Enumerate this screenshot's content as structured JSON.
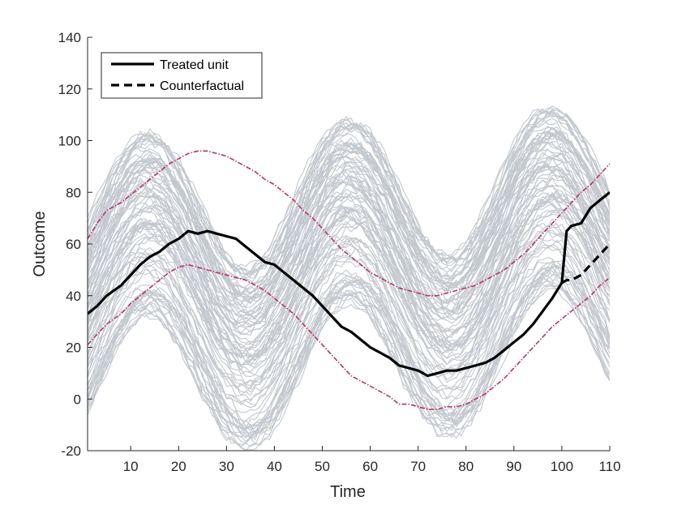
{
  "chart_data": {
    "type": "line",
    "xlabel": "Time",
    "ylabel": "Outcome",
    "xlim": [
      1,
      110
    ],
    "ylim": [
      -20,
      140
    ],
    "xticks": [
      10,
      20,
      30,
      40,
      50,
      60,
      70,
      80,
      90,
      100,
      110
    ],
    "yticks": [
      -20,
      0,
      20,
      40,
      60,
      80,
      100,
      120,
      140
    ],
    "grid": false,
    "legend_placement": "top-left",
    "colors": {
      "donor": "#c3c8cf",
      "treated": "#000000",
      "counterfactual": "#000000",
      "highlight": "#b8336a",
      "axis": "#262626"
    },
    "donor_pool": {
      "count": 100,
      "offset_range": [
        -30,
        42
      ],
      "description_note": ""
    },
    "series": [
      {
        "name": "Treated unit",
        "style": "solid",
        "x": [
          1,
          3,
          5,
          8,
          10,
          12,
          14,
          16,
          18,
          20,
          22,
          24,
          26,
          28,
          30,
          32,
          34,
          36,
          38,
          40,
          42,
          44,
          46,
          48,
          50,
          52,
          54,
          56,
          58,
          60,
          62,
          64,
          66,
          68,
          70,
          72,
          74,
          76,
          78,
          80,
          82,
          84,
          86,
          88,
          90,
          92,
          94,
          96,
          98,
          100,
          101,
          102,
          104,
          106,
          108,
          110
        ],
        "y": [
          33,
          36,
          40,
          44,
          48,
          52,
          55,
          57,
          60,
          62,
          65,
          64,
          65,
          64,
          63,
          62,
          59,
          56,
          53,
          52,
          49,
          46,
          43,
          40,
          36,
          32,
          28,
          26,
          23,
          20,
          18,
          16,
          13,
          12,
          11,
          9,
          10,
          11,
          11,
          12,
          13,
          14,
          16,
          19,
          22,
          25,
          29,
          34,
          39,
          45,
          65,
          67,
          68,
          74,
          77,
          80
        ]
      },
      {
        "name": "Counterfactual",
        "style": "dashed",
        "x": [
          100,
          101,
          102,
          104,
          106,
          108,
          110
        ],
        "y": [
          45,
          46,
          46,
          48,
          52,
          56,
          60
        ]
      }
    ],
    "highlight_series": [
      {
        "x": [
          1,
          3,
          5,
          8,
          10,
          12,
          14,
          16,
          18,
          20,
          22,
          24,
          26,
          28,
          30,
          32,
          34,
          36,
          38,
          40,
          42,
          44,
          46,
          48,
          50,
          52,
          54,
          56,
          58,
          60,
          62,
          64,
          66,
          68,
          70,
          72,
          74,
          76,
          78,
          80,
          82,
          84,
          86,
          88,
          90,
          92,
          94,
          96,
          98,
          100,
          102,
          104,
          106,
          108,
          110
        ],
        "y": [
          62,
          68,
          73,
          76,
          79,
          82,
          85,
          88,
          91,
          93,
          95,
          96,
          96,
          95,
          94,
          92,
          90,
          88,
          85,
          83,
          80,
          77,
          73,
          70,
          66,
          62,
          58,
          55,
          52,
          49,
          47,
          45,
          43,
          42,
          41,
          40,
          40,
          41,
          42,
          43,
          44,
          46,
          48,
          50,
          53,
          56,
          60,
          64,
          68,
          72,
          76,
          80,
          83,
          87,
          91
        ]
      },
      {
        "x": [
          1,
          3,
          5,
          8,
          10,
          12,
          14,
          16,
          18,
          20,
          22,
          24,
          26,
          28,
          30,
          32,
          34,
          36,
          38,
          40,
          42,
          44,
          46,
          48,
          50,
          52,
          54,
          56,
          58,
          60,
          62,
          64,
          66,
          68,
          70,
          72,
          74,
          76,
          78,
          80,
          82,
          84,
          86,
          88,
          90,
          92,
          94,
          96,
          98,
          100,
          102,
          104,
          106,
          108,
          110
        ],
        "y": [
          21,
          25,
          29,
          33,
          37,
          40,
          43,
          46,
          49,
          51,
          52,
          51,
          50,
          49,
          48,
          47,
          46,
          44,
          42,
          39,
          36,
          33,
          29,
          25,
          21,
          17,
          13,
          9,
          7,
          5,
          3,
          1,
          -2,
          -2,
          -3,
          -4,
          -4,
          -3,
          -3,
          -2,
          0,
          2,
          5,
          8,
          12,
          16,
          20,
          24,
          28,
          31,
          34,
          37,
          40,
          44,
          47
        ]
      }
    ]
  }
}
